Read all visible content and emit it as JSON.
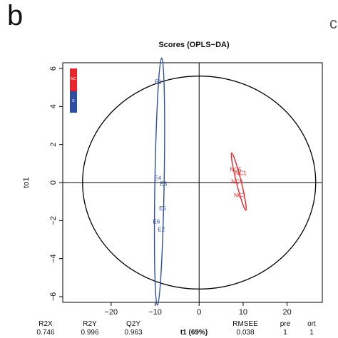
{
  "panel_letter": "b",
  "edge_letter": "c",
  "chart_data": {
    "type": "scatter",
    "title": "Scores (OPLS−DA)",
    "xlabel": "t1 (69%)",
    "ylabel": "to1",
    "xlim": [
      -31,
      28
    ],
    "ylim": [
      -6.3,
      6.3
    ],
    "xticks": [
      {
        "v": -20,
        "label": "−20"
      },
      {
        "v": -10,
        "label": "−10"
      },
      {
        "v": 0,
        "label": "0"
      },
      {
        "v": 10,
        "label": "10"
      },
      {
        "v": 20,
        "label": "20"
      }
    ],
    "yticks": [
      {
        "v": 6,
        "label": "6"
      },
      {
        "v": 4,
        "label": "4"
      },
      {
        "v": 2,
        "label": "2"
      },
      {
        "v": 0,
        "label": "0"
      },
      {
        "v": -2,
        "label": "−2"
      },
      {
        "v": -4,
        "label": "−4"
      },
      {
        "v": -6,
        "label": "−6"
      }
    ],
    "hotelling_ellipse": {
      "cx": 0,
      "cy": 0,
      "rx": 26.5,
      "ry": 5.6,
      "color": "#000000"
    },
    "series": [
      {
        "name": "NC",
        "color": "#e8262b",
        "points": [
          {
            "x": 8.3,
            "y": 0.7,
            "label": "NC5"
          },
          {
            "x": 9.5,
            "y": 0.5,
            "label": "NC1"
          },
          {
            "x": 8.6,
            "y": 0.05,
            "label": "NC4"
          },
          {
            "x": 9.2,
            "y": -0.65,
            "label": "NC3"
          }
        ],
        "ellipse": {
          "cx": 9.0,
          "cy": 0.05,
          "rx": 0.55,
          "ry": 1.55,
          "rotate": -14
        }
      },
      {
        "name": "E",
        "color": "#2e4f9f",
        "points": [
          {
            "x": -9.3,
            "y": 5.3,
            "label": "E1"
          },
          {
            "x": -9.4,
            "y": 0.25,
            "label": "E4"
          },
          {
            "x": -8.1,
            "y": -0.05,
            "label": "E3"
          },
          {
            "x": -8.3,
            "y": -1.35,
            "label": "E5"
          },
          {
            "x": -9.7,
            "y": -2.05,
            "label": "E6"
          },
          {
            "x": -8.6,
            "y": -2.45,
            "label": "E2"
          }
        ],
        "ellipse": {
          "cx": -9.0,
          "cy": 0.05,
          "rx": 1.05,
          "ry": 6.5,
          "rotate": 1
        }
      }
    ],
    "stats": [
      {
        "name": "R2X",
        "value": "0.746"
      },
      {
        "name": "R2Y",
        "value": "0.996"
      },
      {
        "name": "Q2Y",
        "value": "0.963"
      },
      {
        "name": "RMSEE",
        "value": "0.038"
      },
      {
        "name": "pre",
        "value": "1"
      },
      {
        "name": "ort",
        "value": "1"
      }
    ]
  }
}
